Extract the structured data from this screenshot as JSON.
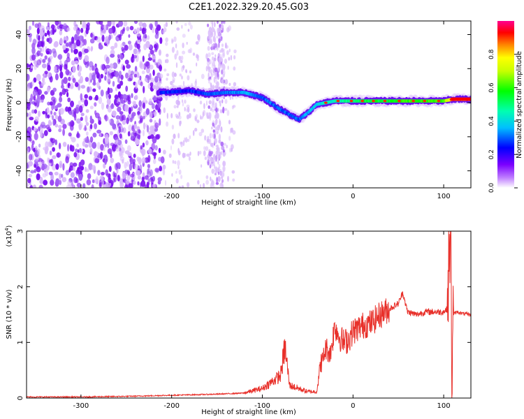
{
  "title": "C2E1.2022.329.20.45.G03",
  "chart_data": [
    {
      "type": "heatmap",
      "xlabel": "Height of straight line (km)",
      "ylabel": "Frequency (Hz)",
      "xlim": [
        -360,
        130
      ],
      "ylim": [
        -50,
        48
      ],
      "xticks": [
        -300,
        -200,
        -100,
        0,
        100
      ],
      "yticks": [
        -40,
        -20,
        0,
        20,
        40
      ],
      "colorbar": {
        "label": "Normalized spectral amplitude",
        "range": [
          0,
          1
        ],
        "ticks": [
          "0.0",
          "0.2",
          "0.4",
          "0.6",
          "0.8"
        ],
        "colormap": [
          "#ffffff",
          "#a020f0",
          "#0000ff",
          "#00ffff",
          "#00ff00",
          "#ffff00",
          "#ff0000",
          "#ff00a0"
        ]
      },
      "ridge": {
        "x": [
          -210,
          -180,
          -160,
          -140,
          -120,
          -100,
          -80,
          -60,
          -50,
          -40,
          -20,
          0,
          20,
          40,
          60,
          80,
          100,
          110,
          130
        ],
        "y": [
          6,
          7,
          5,
          6,
          6,
          3,
          -4,
          -10,
          -6,
          -1,
          1,
          1,
          1,
          1,
          1,
          1,
          1,
          2,
          2
        ],
        "amplitude": [
          0.25,
          0.25,
          0.3,
          0.3,
          0.35,
          0.3,
          0.3,
          0.3,
          0.35,
          0.4,
          0.45,
          0.5,
          0.55,
          0.55,
          0.6,
          0.6,
          0.6,
          0.9,
          0.9
        ]
      },
      "grid": false
    },
    {
      "type": "line",
      "xlabel": "Height of straight line (km)",
      "ylabel": "SNR (10 * v/v)",
      "y_scale_label": "(x10",
      "y_scale_exp": "4",
      "xlim": [
        -360,
        130
      ],
      "ylim": [
        0,
        3
      ],
      "xticks": [
        -300,
        -200,
        -100,
        0,
        100
      ],
      "yticks": [
        0,
        1,
        2,
        3
      ],
      "series": [
        {
          "color": "#e8302a",
          "x": [
            -360,
            -300,
            -250,
            -200,
            -150,
            -120,
            -100,
            -90,
            -80,
            -75,
            -70,
            -60,
            -50,
            -40,
            -35,
            -30,
            -25,
            -20,
            -15,
            -10,
            -5,
            0,
            10,
            20,
            30,
            40,
            50,
            55,
            60,
            70,
            80,
            90,
            100,
            104,
            106,
            108,
            109,
            110,
            115,
            120,
            130
          ],
          "y": [
            0.01,
            0.01,
            0.02,
            0.04,
            0.06,
            0.08,
            0.15,
            0.25,
            0.35,
            0.8,
            0.2,
            0.15,
            0.1,
            0.1,
            0.6,
            0.9,
            0.8,
            1.3,
            1.1,
            1.0,
            1.05,
            1.2,
            1.3,
            1.35,
            1.5,
            1.6,
            1.7,
            1.9,
            1.55,
            1.5,
            1.55,
            1.55,
            1.55,
            1.6,
            2.5,
            3.0,
            0.2,
            1.5,
            1.55,
            1.52,
            1.5
          ]
        }
      ],
      "grid": false
    }
  ]
}
